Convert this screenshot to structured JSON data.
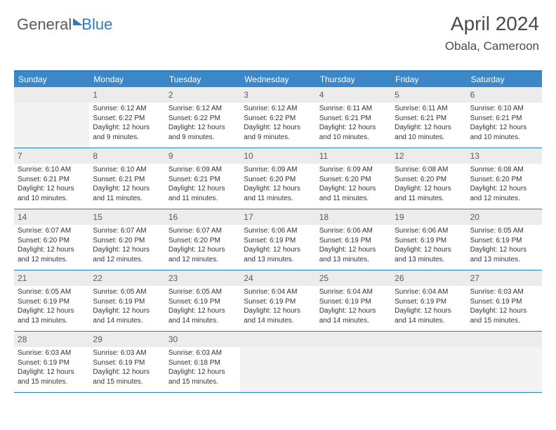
{
  "logo": {
    "part1": "General",
    "part2": "Blue"
  },
  "title": "April 2024",
  "location": "Obala, Cameroon",
  "colors": {
    "header_bg": "#3b87c8",
    "border": "#2b7bbf",
    "daynum_bg": "#ececec",
    "text": "#333333",
    "logo_gray": "#5a5a5a",
    "logo_blue": "#2b7bbf"
  },
  "daysOfWeek": [
    "Sunday",
    "Monday",
    "Tuesday",
    "Wednesday",
    "Thursday",
    "Friday",
    "Saturday"
  ],
  "weeks": [
    [
      {
        "empty": true
      },
      {
        "num": "1",
        "sunrise": "6:12 AM",
        "sunset": "6:22 PM",
        "daylight": "12 hours and 9 minutes."
      },
      {
        "num": "2",
        "sunrise": "6:12 AM",
        "sunset": "6:22 PM",
        "daylight": "12 hours and 9 minutes."
      },
      {
        "num": "3",
        "sunrise": "6:12 AM",
        "sunset": "6:22 PM",
        "daylight": "12 hours and 9 minutes."
      },
      {
        "num": "4",
        "sunrise": "6:11 AM",
        "sunset": "6:21 PM",
        "daylight": "12 hours and 10 minutes."
      },
      {
        "num": "5",
        "sunrise": "6:11 AM",
        "sunset": "6:21 PM",
        "daylight": "12 hours and 10 minutes."
      },
      {
        "num": "6",
        "sunrise": "6:10 AM",
        "sunset": "6:21 PM",
        "daylight": "12 hours and 10 minutes."
      }
    ],
    [
      {
        "num": "7",
        "sunrise": "6:10 AM",
        "sunset": "6:21 PM",
        "daylight": "12 hours and 10 minutes."
      },
      {
        "num": "8",
        "sunrise": "6:10 AM",
        "sunset": "6:21 PM",
        "daylight": "12 hours and 11 minutes."
      },
      {
        "num": "9",
        "sunrise": "6:09 AM",
        "sunset": "6:21 PM",
        "daylight": "12 hours and 11 minutes."
      },
      {
        "num": "10",
        "sunrise": "6:09 AM",
        "sunset": "6:20 PM",
        "daylight": "12 hours and 11 minutes."
      },
      {
        "num": "11",
        "sunrise": "6:09 AM",
        "sunset": "6:20 PM",
        "daylight": "12 hours and 11 minutes."
      },
      {
        "num": "12",
        "sunrise": "6:08 AM",
        "sunset": "6:20 PM",
        "daylight": "12 hours and 11 minutes."
      },
      {
        "num": "13",
        "sunrise": "6:08 AM",
        "sunset": "6:20 PM",
        "daylight": "12 hours and 12 minutes."
      }
    ],
    [
      {
        "num": "14",
        "sunrise": "6:07 AM",
        "sunset": "6:20 PM",
        "daylight": "12 hours and 12 minutes."
      },
      {
        "num": "15",
        "sunrise": "6:07 AM",
        "sunset": "6:20 PM",
        "daylight": "12 hours and 12 minutes."
      },
      {
        "num": "16",
        "sunrise": "6:07 AM",
        "sunset": "6:20 PM",
        "daylight": "12 hours and 12 minutes."
      },
      {
        "num": "17",
        "sunrise": "6:06 AM",
        "sunset": "6:19 PM",
        "daylight": "12 hours and 13 minutes."
      },
      {
        "num": "18",
        "sunrise": "6:06 AM",
        "sunset": "6:19 PM",
        "daylight": "12 hours and 13 minutes."
      },
      {
        "num": "19",
        "sunrise": "6:06 AM",
        "sunset": "6:19 PM",
        "daylight": "12 hours and 13 minutes."
      },
      {
        "num": "20",
        "sunrise": "6:05 AM",
        "sunset": "6:19 PM",
        "daylight": "12 hours and 13 minutes."
      }
    ],
    [
      {
        "num": "21",
        "sunrise": "6:05 AM",
        "sunset": "6:19 PM",
        "daylight": "12 hours and 13 minutes."
      },
      {
        "num": "22",
        "sunrise": "6:05 AM",
        "sunset": "6:19 PM",
        "daylight": "12 hours and 14 minutes."
      },
      {
        "num": "23",
        "sunrise": "6:05 AM",
        "sunset": "6:19 PM",
        "daylight": "12 hours and 14 minutes."
      },
      {
        "num": "24",
        "sunrise": "6:04 AM",
        "sunset": "6:19 PM",
        "daylight": "12 hours and 14 minutes."
      },
      {
        "num": "25",
        "sunrise": "6:04 AM",
        "sunset": "6:19 PM",
        "daylight": "12 hours and 14 minutes."
      },
      {
        "num": "26",
        "sunrise": "6:04 AM",
        "sunset": "6:19 PM",
        "daylight": "12 hours and 14 minutes."
      },
      {
        "num": "27",
        "sunrise": "6:03 AM",
        "sunset": "6:19 PM",
        "daylight": "12 hours and 15 minutes."
      }
    ],
    [
      {
        "num": "28",
        "sunrise": "6:03 AM",
        "sunset": "6:19 PM",
        "daylight": "12 hours and 15 minutes."
      },
      {
        "num": "29",
        "sunrise": "6:03 AM",
        "sunset": "6:19 PM",
        "daylight": "12 hours and 15 minutes."
      },
      {
        "num": "30",
        "sunrise": "6:03 AM",
        "sunset": "6:18 PM",
        "daylight": "12 hours and 15 minutes."
      },
      {
        "empty": true
      },
      {
        "empty": true
      },
      {
        "empty": true
      },
      {
        "empty": true
      }
    ]
  ],
  "labels": {
    "sunrise": "Sunrise:",
    "sunset": "Sunset:",
    "daylight": "Daylight:"
  }
}
